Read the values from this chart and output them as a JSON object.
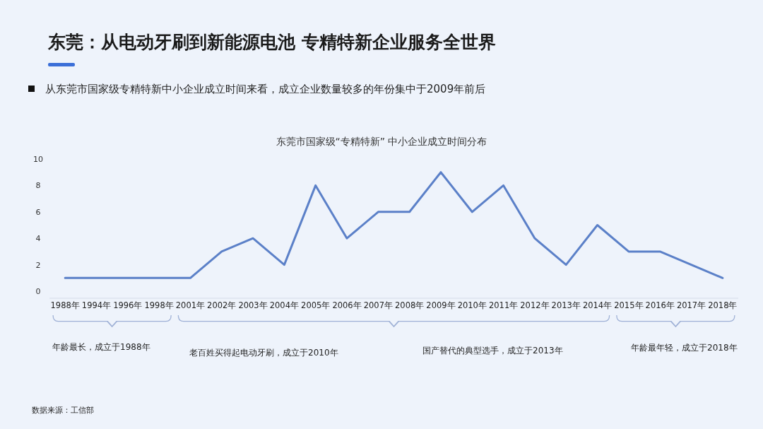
{
  "chart_data": {
    "type": "line",
    "title": "东莞：从电动牙刷到新能源电池 专精特新企业服务全世界",
    "subtitle": "东莞市国家级“专精特新” 中小企业成立时间分布",
    "categories": [
      "1988年",
      "1994年",
      "1996年",
      "1998年",
      "2001年",
      "2002年",
      "2003年",
      "2004年",
      "2005年",
      "2006年",
      "2007年",
      "2008年",
      "2009年",
      "2010年",
      "2011年",
      "2012年",
      "2013年",
      "2014年",
      "2015年",
      "2016年",
      "2017年",
      "2018年"
    ],
    "values": [
      1,
      1,
      1,
      1,
      1,
      3,
      4,
      2,
      8,
      4,
      6,
      6,
      9,
      6,
      8,
      4,
      2,
      5,
      3,
      3,
      2,
      1
    ],
    "color": "#5b80c8",
    "ylim": [
      0,
      10
    ],
    "yticks": [
      0,
      2,
      4,
      6,
      8,
      10
    ],
    "grid": false,
    "marker": "none",
    "annotations": [
      "从东莞市国家级专精特新中小企业成立时间来看，成立企业数量较多的年份集中于2009年前后",
      "年龄最长，成立于1988年",
      "老百姓买得起电动牙刷，成立于2010年",
      "国产替代的典型选手，成立于2013年",
      "年龄最年轻，成立于2018年",
      "数据来源：工信部"
    ]
  }
}
